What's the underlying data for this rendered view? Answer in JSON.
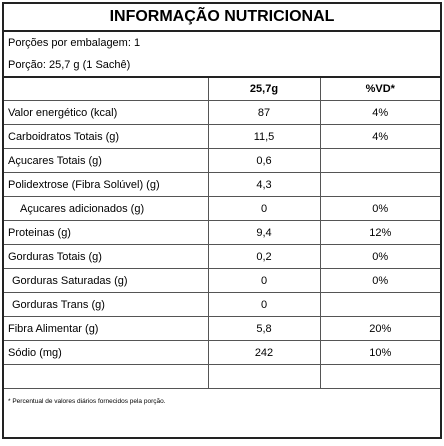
{
  "header": {
    "title": "INFORMAÇÃO NUTRICIONAL",
    "servings_per_package": "Porções por embalagem: 1",
    "serving": "Porção: 25,7 g (1 Sachê)"
  },
  "table": {
    "columns": [
      "25,7g",
      "%VD*"
    ],
    "rows": [
      {
        "label": "Valor energético (kcal)",
        "value": "87",
        "vd": "4%"
      },
      {
        "label": "Carboidratos Totais (g)",
        "value": "11,5",
        "vd": "4%"
      },
      {
        "label": "Açucares Totais (g)",
        "value": "0,6"
      },
      {
        "label": "Polidextrose (Fibra Solúvel) (g)",
        "value": "4,3"
      },
      {
        "label": "Açucares adicionados (g)",
        "value": "0",
        "vd": "0%"
      },
      {
        "label": "Proteinas (g)",
        "value": "9,4",
        "vd": "12%"
      },
      {
        "label": "Gorduras Totais (g)",
        "value": "0,2",
        "vd": "0%"
      },
      {
        "label": "Gorduras Saturadas (g)",
        "value": "0",
        "vd": "0%"
      },
      {
        "label": "Gorduras Trans (g)",
        "value": "0"
      },
      {
        "label": "Fibra Alimentar (g)",
        "value": "5,8",
        "vd": "20%"
      },
      {
        "label": "Sódio (mg)",
        "value": "242",
        "vd": "10%"
      }
    ]
  },
  "footnote": "* Percentual de valores diários fornecidos pela porção."
}
